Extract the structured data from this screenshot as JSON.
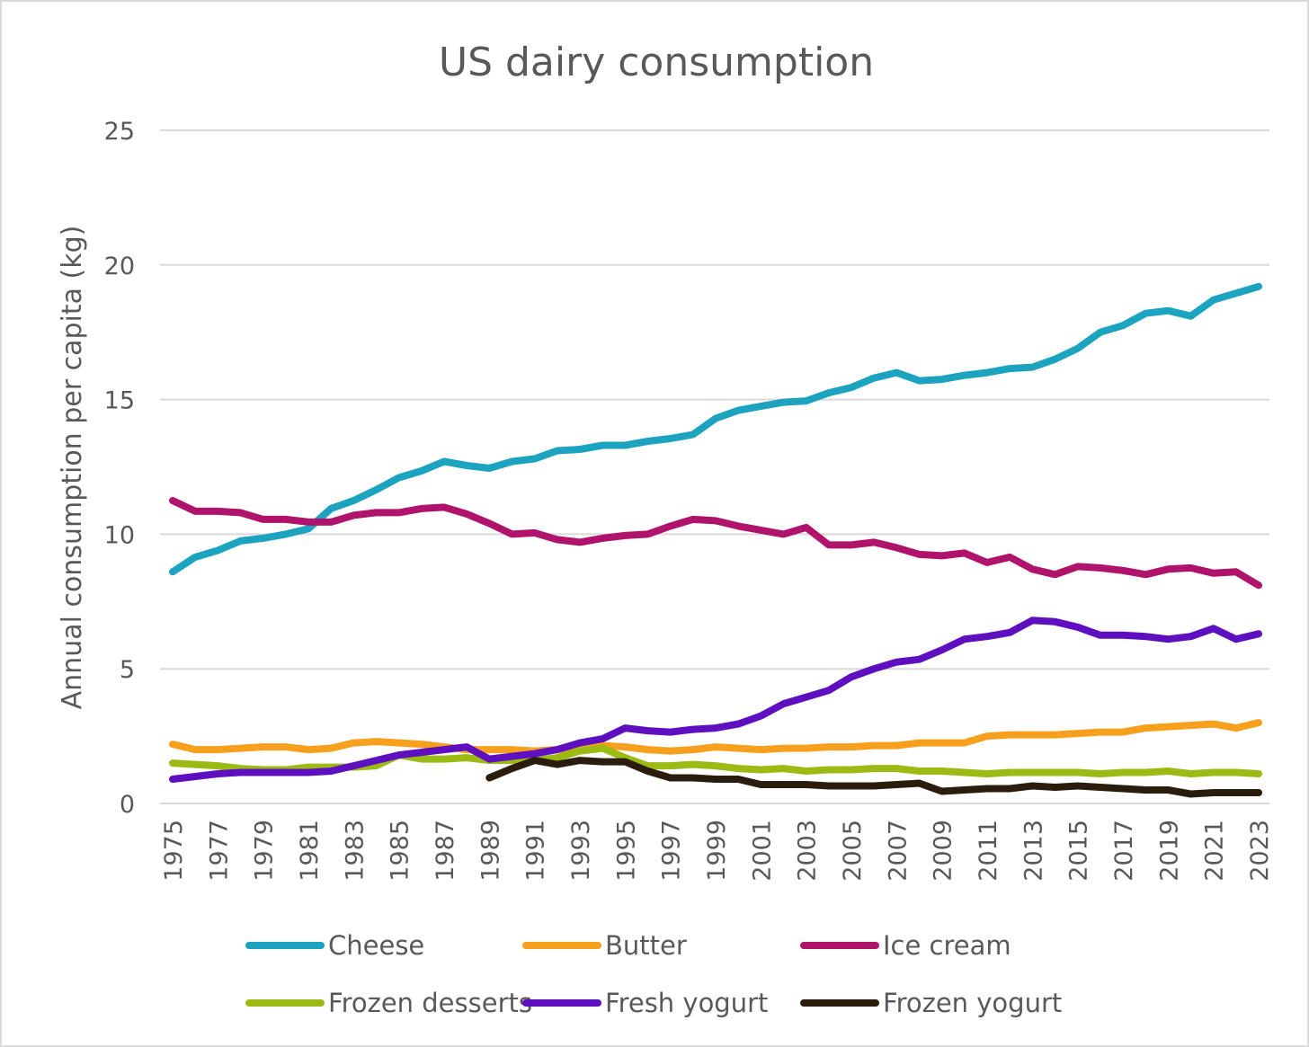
{
  "chart_data": {
    "type": "line",
    "title": "US dairy consumption",
    "xlabel": "",
    "ylabel": "Annual consumption per capita (kg)",
    "ylim": [
      0,
      25
    ],
    "yticks": [
      0,
      5,
      10,
      15,
      20,
      25
    ],
    "grid": true,
    "legend_position": "bottom",
    "x": [
      1975,
      1976,
      1977,
      1978,
      1979,
      1980,
      1981,
      1982,
      1983,
      1984,
      1985,
      1986,
      1987,
      1988,
      1989,
      1990,
      1991,
      1992,
      1993,
      1994,
      1995,
      1996,
      1997,
      1998,
      1999,
      2000,
      2001,
      2002,
      2003,
      2004,
      2005,
      2006,
      2007,
      2008,
      2009,
      2010,
      2011,
      2012,
      2013,
      2014,
      2015,
      2016,
      2017,
      2018,
      2019,
      2020,
      2021,
      2022,
      2023
    ],
    "xtick_labels": [
      "1975",
      "1977",
      "1979",
      "1981",
      "1983",
      "1985",
      "1987",
      "1989",
      "1991",
      "1993",
      "1995",
      "1997",
      "1999",
      "2001",
      "2003",
      "2005",
      "2007",
      "2009",
      "2011",
      "2013",
      "2015",
      "2017",
      "2019",
      "2021",
      "2023"
    ],
    "series": [
      {
        "name": "Cheese",
        "color": "#1ba3bf",
        "values": [
          8.6,
          9.15,
          9.4,
          9.75,
          9.85,
          10.0,
          10.2,
          10.95,
          11.25,
          11.65,
          12.1,
          12.35,
          12.7,
          12.55,
          12.45,
          12.7,
          12.8,
          13.1,
          13.15,
          13.3,
          13.3,
          13.45,
          13.55,
          13.7,
          14.3,
          14.6,
          14.75,
          14.9,
          14.95,
          15.25,
          15.45,
          15.8,
          16.0,
          15.7,
          15.75,
          15.9,
          16.0,
          16.15,
          16.2,
          16.5,
          16.9,
          17.5,
          17.75,
          18.2,
          18.3,
          18.1,
          18.7,
          18.95,
          19.2
        ]
      },
      {
        "name": "Butter",
        "color": "#f7a01d",
        "values": [
          2.2,
          2.0,
          2.0,
          2.05,
          2.1,
          2.1,
          2.0,
          2.05,
          2.25,
          2.3,
          2.25,
          2.2,
          2.1,
          2.0,
          2.0,
          2.0,
          1.95,
          2.0,
          2.1,
          2.15,
          2.1,
          2.0,
          1.95,
          2.0,
          2.1,
          2.05,
          2.0,
          2.05,
          2.05,
          2.1,
          2.1,
          2.15,
          2.15,
          2.25,
          2.25,
          2.25,
          2.5,
          2.55,
          2.55,
          2.55,
          2.6,
          2.65,
          2.65,
          2.8,
          2.85,
          2.9,
          2.95,
          2.8,
          3.0
        ]
      },
      {
        "name": "Ice cream",
        "color": "#b0136b",
        "values": [
          11.25,
          10.85,
          10.85,
          10.8,
          10.55,
          10.55,
          10.45,
          10.45,
          10.7,
          10.8,
          10.8,
          10.95,
          11.0,
          10.75,
          10.4,
          10.0,
          10.05,
          9.8,
          9.7,
          9.85,
          9.95,
          10.0,
          10.3,
          10.55,
          10.5,
          10.3,
          10.15,
          10.0,
          10.25,
          9.6,
          9.6,
          9.7,
          9.5,
          9.25,
          9.2,
          9.3,
          8.95,
          9.15,
          8.7,
          8.5,
          8.8,
          8.75,
          8.65,
          8.5,
          8.7,
          8.75,
          8.55,
          8.6,
          8.1
        ]
      },
      {
        "name": "Frozen desserts",
        "color": "#9bbb14",
        "values": [
          1.5,
          1.45,
          1.4,
          1.3,
          1.25,
          1.25,
          1.35,
          1.35,
          1.35,
          1.4,
          1.8,
          1.65,
          1.65,
          1.7,
          1.6,
          1.6,
          1.6,
          1.7,
          1.95,
          2.05,
          1.7,
          1.4,
          1.4,
          1.45,
          1.4,
          1.3,
          1.25,
          1.3,
          1.2,
          1.25,
          1.25,
          1.3,
          1.3,
          1.2,
          1.2,
          1.15,
          1.1,
          1.15,
          1.15,
          1.15,
          1.15,
          1.1,
          1.15,
          1.15,
          1.2,
          1.1,
          1.15,
          1.15,
          1.1
        ]
      },
      {
        "name": "Fresh yogurt",
        "color": "#5e0fc0",
        "values": [
          0.9,
          1.0,
          1.1,
          1.15,
          1.15,
          1.15,
          1.15,
          1.2,
          1.4,
          1.6,
          1.8,
          1.9,
          2.0,
          2.1,
          1.65,
          1.75,
          1.85,
          2.0,
          2.25,
          2.4,
          2.8,
          2.7,
          2.65,
          2.75,
          2.8,
          2.95,
          3.25,
          3.7,
          3.95,
          4.2,
          4.7,
          5.0,
          5.25,
          5.35,
          5.7,
          6.1,
          6.2,
          6.35,
          6.8,
          6.75,
          6.55,
          6.25,
          6.25,
          6.2,
          6.1,
          6.2,
          6.5,
          6.1,
          6.3
        ]
      },
      {
        "name": "Frozen yogurt",
        "color": "#2b1d0e",
        "values": [
          null,
          null,
          null,
          null,
          null,
          null,
          null,
          null,
          null,
          null,
          null,
          null,
          null,
          null,
          0.95,
          1.3,
          1.6,
          1.45,
          1.6,
          1.55,
          1.55,
          1.2,
          0.95,
          0.95,
          0.9,
          0.9,
          0.7,
          0.7,
          0.7,
          0.65,
          0.65,
          0.65,
          0.7,
          0.75,
          0.45,
          0.5,
          0.55,
          0.55,
          0.65,
          0.6,
          0.65,
          0.6,
          0.55,
          0.5,
          0.5,
          0.35,
          0.4,
          0.4,
          0.4
        ]
      }
    ]
  }
}
